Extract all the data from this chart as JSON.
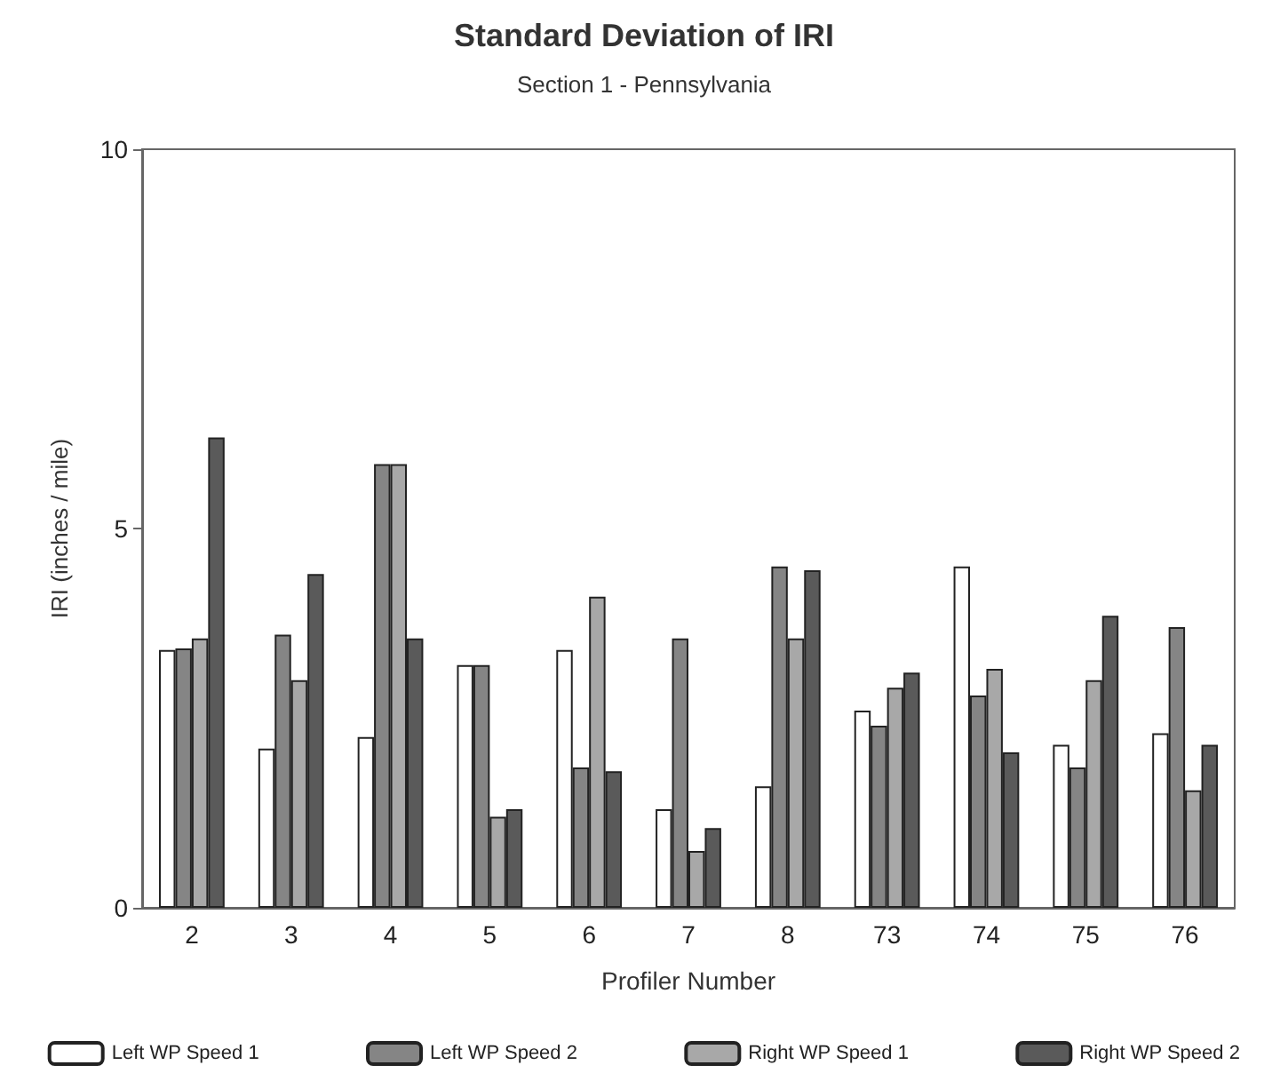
{
  "chart_data": {
    "type": "bar",
    "title": "Standard Deviation of IRI",
    "subtitle": "Section 1 - Pennsylvania",
    "xlabel": "Profiler Number",
    "ylabel": "IRI (inches / mile)",
    "categories": [
      "2",
      "3",
      "4",
      "5",
      "6",
      "7",
      "8",
      "73",
      "74",
      "75",
      "76"
    ],
    "series": [
      {
        "name": "Left WP Speed 1",
        "color": "#ffffff",
        "values": [
          3.4,
          2.1,
          2.25,
          3.2,
          3.4,
          1.3,
          1.6,
          2.6,
          4.5,
          2.15,
          2.3
        ]
      },
      {
        "name": "Left WP Speed 2",
        "color": "#858585",
        "values": [
          3.42,
          3.6,
          5.85,
          3.2,
          1.85,
          3.55,
          4.5,
          2.4,
          2.8,
          1.85,
          3.7
        ]
      },
      {
        "name": "Right WP Speed 1",
        "color": "#a8a8a8",
        "values": [
          3.55,
          3.0,
          5.85,
          1.2,
          4.1,
          0.75,
          3.55,
          2.9,
          3.15,
          3.0,
          1.55
        ]
      },
      {
        "name": "Right WP Speed 2",
        "color": "#5a5a5a",
        "values": [
          6.2,
          4.4,
          3.55,
          1.3,
          1.8,
          1.05,
          4.45,
          3.1,
          2.05,
          3.85,
          2.15
        ]
      }
    ],
    "ylim": [
      0,
      10
    ],
    "yticks": [
      0,
      5,
      10
    ],
    "grid": false,
    "legend": "bottom"
  }
}
